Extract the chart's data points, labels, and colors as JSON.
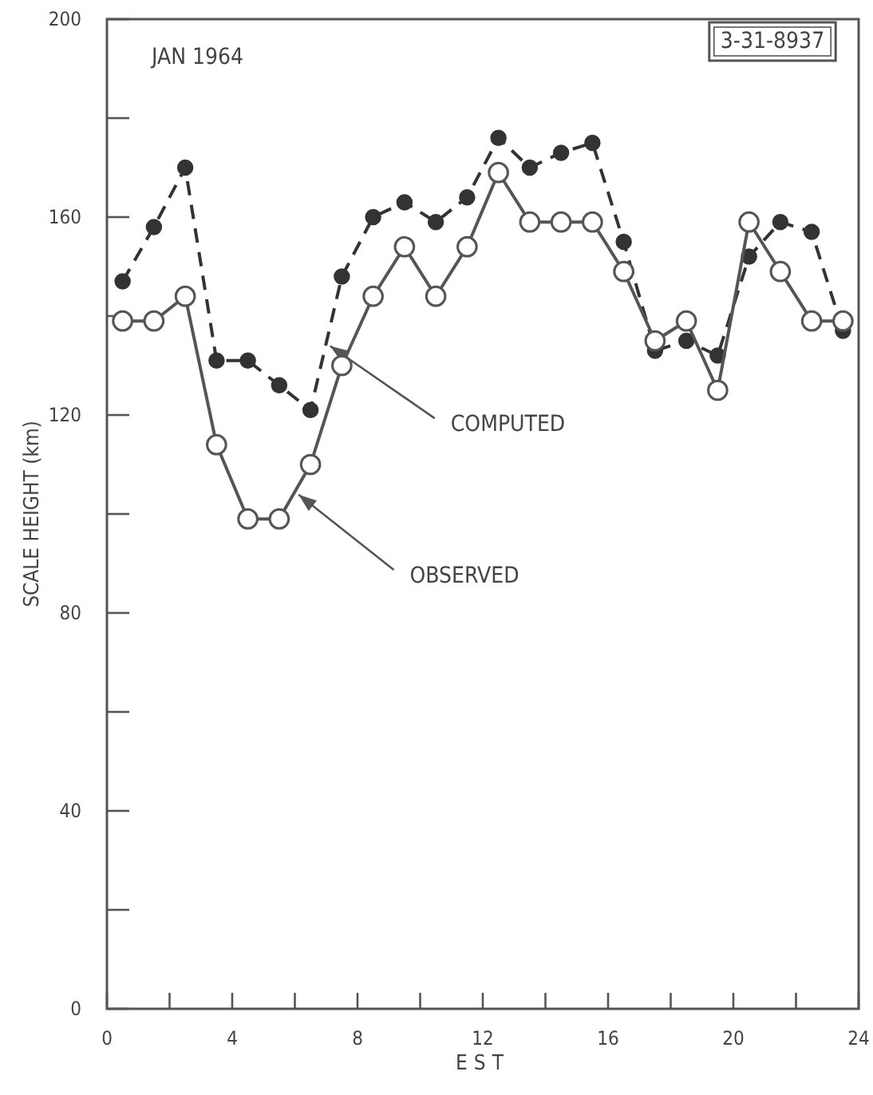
{
  "chart_data": {
    "type": "line",
    "title": "JAN 1964",
    "xlabel": "EST",
    "ylabel": "SCALE HEIGHT (km)",
    "annotations": [
      "3-31-8937"
    ],
    "x": [
      0.5,
      1.5,
      2.5,
      3.5,
      4.5,
      5.5,
      6.5,
      7.5,
      8.5,
      9.5,
      10.5,
      11.5,
      12.5,
      13.5,
      14.5,
      15.5,
      16.5,
      17.5,
      18.5,
      19.5,
      20.5,
      21.5,
      22.5,
      23.5
    ],
    "series": [
      {
        "name": "COMPUTED",
        "color": "#333333",
        "line_style": "dashed",
        "marker": "circle",
        "values": [
          147,
          158,
          170,
          131,
          131,
          126,
          121,
          148,
          160,
          163,
          159,
          164,
          176,
          170,
          173,
          175,
          155,
          133,
          135,
          132,
          152,
          159,
          157,
          137
        ]
      },
      {
        "name": "OBSERVED",
        "color": "#555555",
        "line_style": "solid",
        "marker": "circle",
        "values": [
          139,
          139,
          144,
          114,
          99,
          99,
          110,
          130,
          144,
          154,
          144,
          154,
          169,
          159,
          159,
          159,
          149,
          135,
          139,
          125,
          159,
          149,
          139,
          139
        ]
      }
    ],
    "xlim": [
      0,
      24
    ],
    "xticks": [
      0,
      {
        "value": 2,
        "label": null
      },
      4,
      {
        "value": 6,
        "label": null
      },
      8,
      {
        "value": 10,
        "label": null
      },
      12,
      {
        "value": 14,
        "label": null
      },
      16,
      {
        "value": 18,
        "label": null
      },
      20,
      {
        "value": 22,
        "label": null
      },
      24
    ],
    "ylim": [
      0,
      200
    ],
    "yticks": [
      0,
      {
        "value": 20,
        "label": null
      },
      40,
      {
        "value": 60,
        "label": null
      },
      80,
      {
        "value": 100,
        "label": null
      },
      120,
      {
        "value": 140,
        "label": null
      },
      160,
      {
        "value": 180,
        "label": null
      },
      200
    ],
    "grid": false,
    "legend": false
  }
}
